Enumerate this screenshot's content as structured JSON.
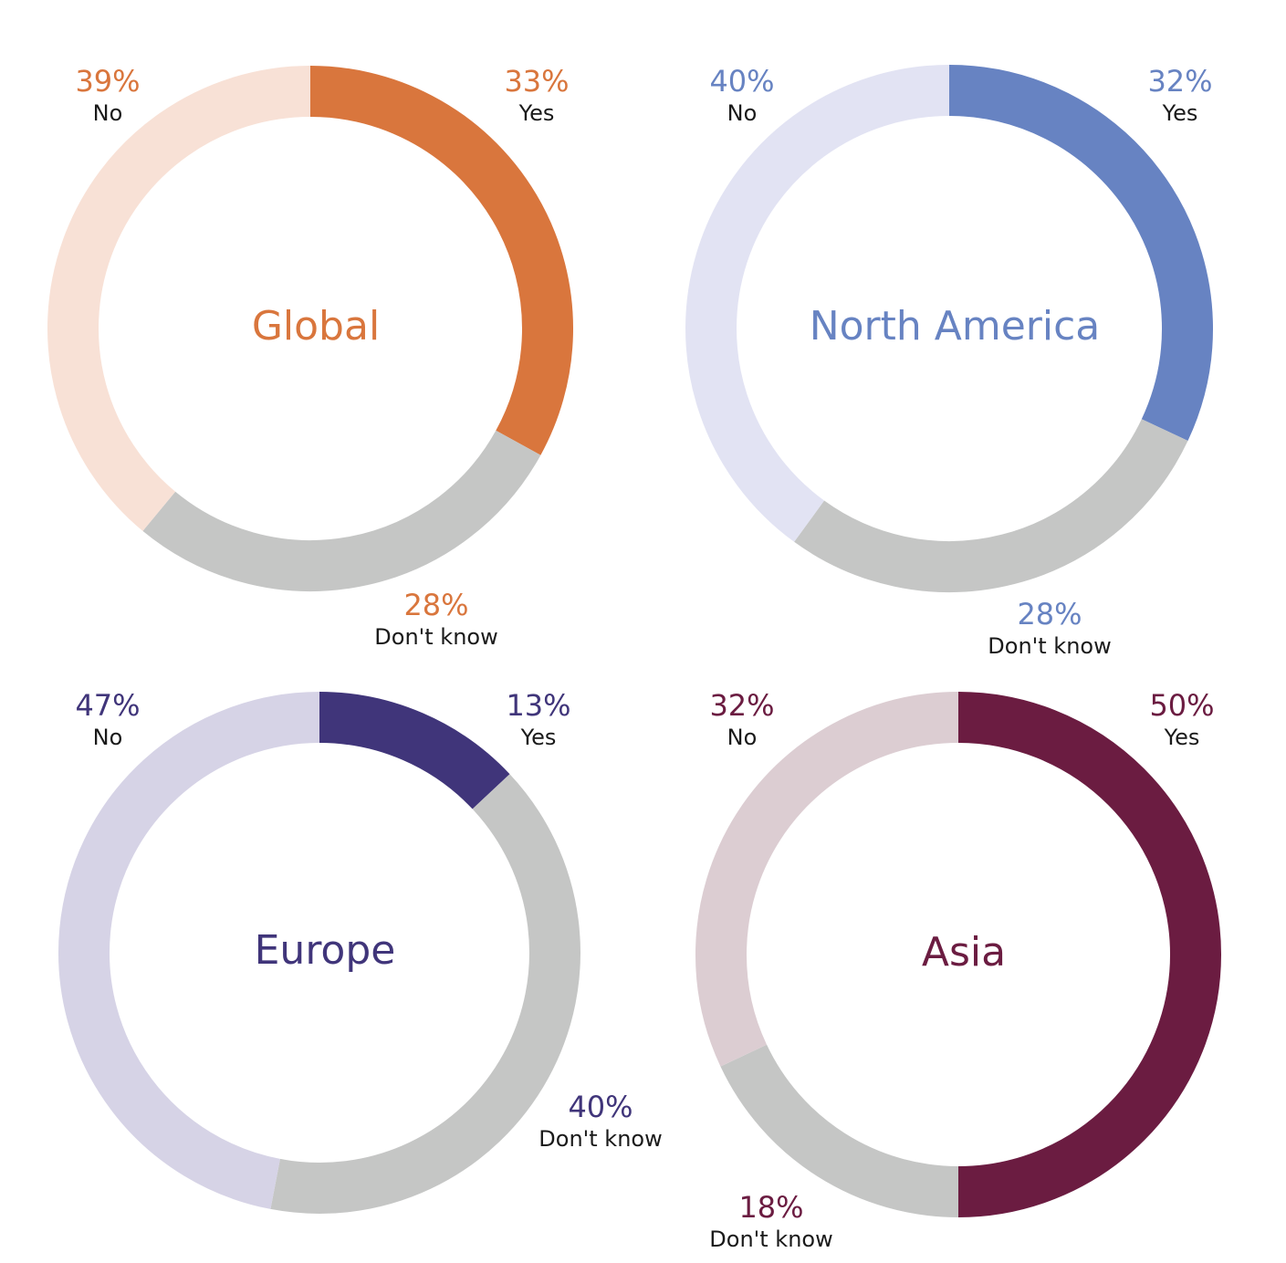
{
  "chart_data": [
    {
      "type": "pie",
      "title": "Global",
      "accent": "#d9763d",
      "slices": [
        {
          "label": "Yes",
          "value": 33,
          "text": "33%",
          "color": "#d9763d"
        },
        {
          "label": "Don't know",
          "value": 28,
          "text": "28%",
          "color": "#c5c6c5"
        },
        {
          "label": "No",
          "value": 39,
          "text": "39%",
          "color": "#f8e1d6"
        }
      ]
    },
    {
      "type": "pie",
      "title": "North America",
      "accent": "#6783c2",
      "slices": [
        {
          "label": "Yes",
          "value": 32,
          "text": "32%",
          "color": "#6783c2"
        },
        {
          "label": "Don't know",
          "value": 28,
          "text": "28%",
          "color": "#c5c6c5"
        },
        {
          "label": "No",
          "value": 40,
          "text": "40%",
          "color": "#e2e3f3"
        }
      ]
    },
    {
      "type": "pie",
      "title": "Europe",
      "accent": "#40357a",
      "slices": [
        {
          "label": "Yes",
          "value": 13,
          "text": "13%",
          "color": "#40357a"
        },
        {
          "label": "Don't know",
          "value": 40,
          "text": "40%",
          "color": "#c5c6c5"
        },
        {
          "label": "No",
          "value": 47,
          "text": "47%",
          "color": "#d6d3e6"
        }
      ]
    },
    {
      "type": "pie",
      "title": "Asia",
      "accent": "#6b1c41",
      "slices": [
        {
          "label": "Yes",
          "value": 50,
          "text": "50%",
          "color": "#6b1c41"
        },
        {
          "label": "Don't know",
          "value": 18,
          "text": "18%",
          "color": "#c5c6c5"
        },
        {
          "label": "No",
          "value": 32,
          "text": "32%",
          "color": "#dccdd2"
        }
      ]
    }
  ]
}
